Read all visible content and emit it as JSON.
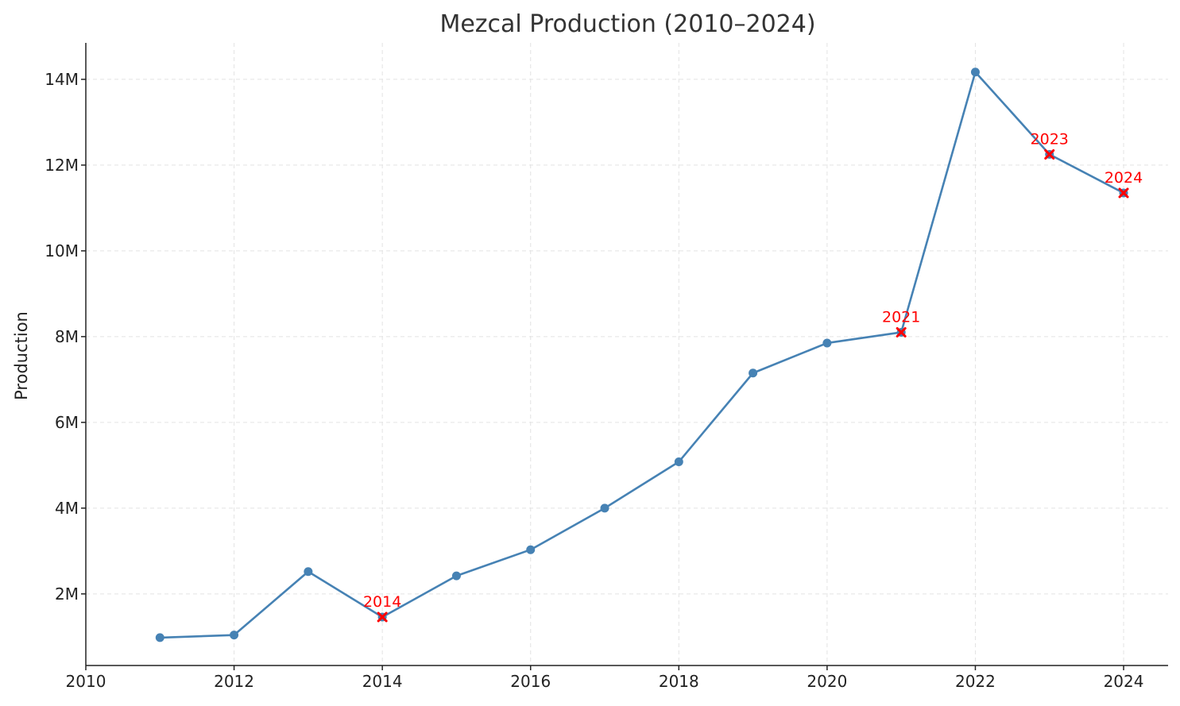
{
  "chart_data": {
    "type": "line",
    "title": "Mezcal Production (2010–2024)",
    "xlabel": "",
    "ylabel": "Production",
    "xlim": [
      2010,
      2024.6
    ],
    "ylim": [
      330000,
      14850000
    ],
    "x_ticks": [
      2010,
      2012,
      2014,
      2016,
      2018,
      2020,
      2022,
      2024
    ],
    "x_tick_labels": [
      "2010",
      "2012",
      "2014",
      "2016",
      "2018",
      "2020",
      "2022",
      "2024"
    ],
    "y_ticks": [
      2000000,
      4000000,
      6000000,
      8000000,
      10000000,
      12000000,
      14000000
    ],
    "y_tick_labels": [
      "2M",
      "4M",
      "6M",
      "8M",
      "10M",
      "12M",
      "14M"
    ],
    "grid": true,
    "series": [
      {
        "color": "#4682b4",
        "x": [
          2011,
          2012,
          2013,
          2014,
          2015,
          2016,
          2017,
          2018,
          2019,
          2020,
          2021,
          2022,
          2023,
          2024
        ],
        "y": [
          980000,
          1040000,
          2520000,
          1460000,
          2420000,
          3030000,
          4000000,
          5080000,
          7150000,
          7850000,
          8100000,
          14170000,
          12250000,
          11350000
        ]
      }
    ],
    "highlighted_points": {
      "color": "#ff0000",
      "marker": "x",
      "points": [
        {
          "x": 2014,
          "y": 1460000,
          "label": "2014"
        },
        {
          "x": 2021,
          "y": 8100000,
          "label": "2021"
        },
        {
          "x": 2023,
          "y": 12250000,
          "label": "2023"
        },
        {
          "x": 2024,
          "y": 11350000,
          "label": "2024"
        }
      ]
    }
  }
}
